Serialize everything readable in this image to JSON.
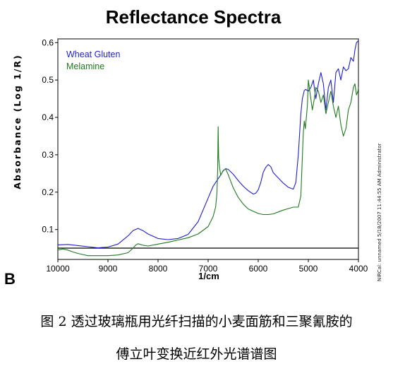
{
  "chart_data": {
    "type": "line",
    "title": "Reflectance Spectra",
    "xlabel": "1/cm",
    "ylabel": "Absorbance (Log 1/R)",
    "xlim": [
      10000,
      4000
    ],
    "ylim": [
      0.02,
      0.61
    ],
    "x_ticks": [
      "10000",
      "9000",
      "8000",
      "7000",
      "6000",
      "5000",
      "4000"
    ],
    "y_ticks": [
      "0.1",
      "0.2",
      "0.3",
      "0.4",
      "0.5",
      "0.6"
    ],
    "legend_position": "top-left",
    "panel_letter": "B",
    "side_note": "NIRCal:  unnamed  5/18/2007 11:44:55 AM  Administrator",
    "series": [
      {
        "name": "Wheat Gluten",
        "color": "#1f1fd0",
        "x": [
          10000,
          9800,
          9600,
          9400,
          9200,
          9000,
          8800,
          8600,
          8500,
          8400,
          8300,
          8200,
          8000,
          7800,
          7600,
          7400,
          7200,
          7050,
          6900,
          6800,
          6750,
          6700,
          6650,
          6600,
          6500,
          6400,
          6300,
          6200,
          6100,
          6050,
          6000,
          5950,
          5900,
          5850,
          5800,
          5750,
          5700,
          5600,
          5500,
          5400,
          5300,
          5250,
          5200,
          5150,
          5120,
          5080,
          5050,
          5000,
          4950,
          4900,
          4850,
          4800,
          4750,
          4700,
          4650,
          4600,
          4550,
          4500,
          4450,
          4400,
          4350,
          4300,
          4250,
          4200,
          4150,
          4100,
          4070,
          4040,
          4000
        ],
        "y": [
          0.059,
          0.06,
          0.057,
          0.054,
          0.051,
          0.053,
          0.061,
          0.083,
          0.097,
          0.103,
          0.097,
          0.088,
          0.076,
          0.073,
          0.076,
          0.087,
          0.121,
          0.168,
          0.216,
          0.236,
          0.246,
          0.257,
          0.263,
          0.261,
          0.248,
          0.231,
          0.216,
          0.204,
          0.195,
          0.197,
          0.206,
          0.226,
          0.253,
          0.266,
          0.274,
          0.268,
          0.252,
          0.238,
          0.224,
          0.213,
          0.208,
          0.226,
          0.3,
          0.41,
          0.45,
          0.472,
          0.475,
          0.47,
          0.48,
          0.5,
          0.45,
          0.49,
          0.52,
          0.49,
          0.42,
          0.48,
          0.5,
          0.44,
          0.52,
          0.53,
          0.5,
          0.535,
          0.525,
          0.53,
          0.56,
          0.55,
          0.58,
          0.6,
          0.605
        ]
      },
      {
        "name": "Melamine",
        "color": "#1f7a1f",
        "x": [
          10000,
          9900,
          9800,
          9700,
          9600,
          9500,
          9400,
          9200,
          9000,
          8800,
          8600,
          8500,
          8450,
          8400,
          8300,
          8200,
          8000,
          7800,
          7600,
          7400,
          7200,
          7000,
          6900,
          6850,
          6825,
          6810,
          6800,
          6790,
          6770,
          6750,
          6700,
          6650,
          6600,
          6500,
          6400,
          6300,
          6200,
          6000,
          5900,
          5800,
          5700,
          5600,
          5500,
          5400,
          5300,
          5200,
          5150,
          5100,
          5080,
          5060,
          5040,
          5020,
          5000,
          4960,
          4920,
          4880,
          4850,
          4800,
          4750,
          4700,
          4650,
          4600,
          4550,
          4500,
          4450,
          4400,
          4350,
          4300,
          4250,
          4200,
          4150,
          4100,
          4070,
          4040,
          4010,
          4000
        ],
        "y": [
          0.045,
          0.048,
          0.045,
          0.04,
          0.036,
          0.033,
          0.03,
          0.03,
          0.03,
          0.032,
          0.038,
          0.05,
          0.058,
          0.062,
          0.058,
          0.056,
          0.061,
          0.066,
          0.072,
          0.078,
          0.088,
          0.108,
          0.135,
          0.16,
          0.195,
          0.26,
          0.375,
          0.29,
          0.265,
          0.245,
          0.258,
          0.262,
          0.247,
          0.212,
          0.186,
          0.168,
          0.155,
          0.143,
          0.14,
          0.14,
          0.142,
          0.147,
          0.152,
          0.156,
          0.16,
          0.16,
          0.19,
          0.36,
          0.39,
          0.37,
          0.4,
          0.43,
          0.5,
          0.46,
          0.42,
          0.45,
          0.48,
          0.47,
          0.44,
          0.46,
          0.41,
          0.44,
          0.47,
          0.43,
          0.4,
          0.43,
          0.38,
          0.35,
          0.37,
          0.42,
          0.44,
          0.48,
          0.49,
          0.46,
          0.47,
          0.48
        ]
      }
    ]
  },
  "caption": {
    "line1": "图 2  透过玻璃瓶用光纤扫描的小麦面筋和三聚氰胺的",
    "line2": "傅立叶变换近红外光谱谱图"
  }
}
